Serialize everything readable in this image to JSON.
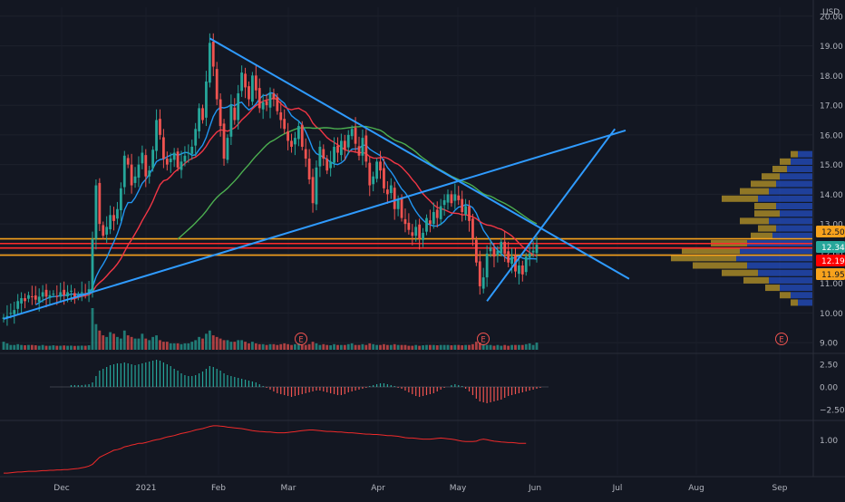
{
  "chart_data": {
    "type": "candlestick",
    "currency": "USD",
    "price_axis": {
      "ticks": [
        "20.00",
        "19.00",
        "18.00",
        "17.00",
        "16.00",
        "15.00",
        "14.00",
        "13.00",
        "12.00",
        "11.00",
        "10.00",
        "9.00"
      ],
      "ylim": [
        8.7,
        20.3
      ]
    },
    "time_axis": {
      "labels": [
        "Dec",
        "2021",
        "Feb",
        "Mar",
        "Apr",
        "May",
        "Jun",
        "Jul",
        "Aug",
        "Sep"
      ]
    },
    "price_badges": [
      {
        "value": "12.50",
        "color": "#f7a21c",
        "text_color": "#131722"
      },
      {
        "value": "12.34",
        "color": "#26a69a",
        "text_color": "#ffffff"
      },
      {
        "value": "12.19",
        "color": "#ff0000",
        "text_color": "#ffffff"
      },
      {
        "value": "11.95",
        "color": "#f7a21c",
        "text_color": "#131722"
      }
    ],
    "horizontal_levels": [
      {
        "price": 12.5,
        "color": "#f7a21c"
      },
      {
        "price": 12.34,
        "color": "#ff2b2b"
      },
      {
        "price": 12.19,
        "color": "#ff2b2b"
      },
      {
        "price": 11.95,
        "color": "#f7a21c"
      }
    ],
    "close_series": [
      9.85,
      9.9,
      10.0,
      10.1,
      10.4,
      10.5,
      10.4,
      10.6,
      10.55,
      10.45,
      10.55,
      10.7,
      10.55,
      10.6,
      10.65,
      10.55,
      10.7,
      10.6,
      10.7,
      10.75,
      10.55,
      10.6,
      10.7,
      10.65,
      10.8,
      12.5,
      14.3,
      13.0,
      12.6,
      12.9,
      13.3,
      13.1,
      13.5,
      14.2,
      15.3,
      15.0,
      14.3,
      14.6,
      15.0,
      15.4,
      14.6,
      14.8,
      15.5,
      16.5,
      16.0,
      15.2,
      15.0,
      15.2,
      15.4,
      14.9,
      15.1,
      15.3,
      15.4,
      15.6,
      16.2,
      16.9,
      16.5,
      17.8,
      19.1,
      18.3,
      17.2,
      16.3,
      15.2,
      15.9,
      17.0,
      16.5,
      17.4,
      18.1,
      17.6,
      17.2,
      18.0,
      17.5,
      16.9,
      17.1,
      17.0,
      17.4,
      17.2,
      16.8,
      16.5,
      16.2,
      15.8,
      15.6,
      15.9,
      16.3,
      15.6,
      15.2,
      14.5,
      13.7,
      14.9,
      15.6,
      15.2,
      14.8,
      15.1,
      15.6,
      15.4,
      15.8,
      15.5,
      16.0,
      16.2,
      15.7,
      15.3,
      15.9,
      15.1,
      14.3,
      14.6,
      15.1,
      14.8,
      14.2,
      14.0,
      14.3,
      13.5,
      13.8,
      13.2,
      13.0,
      12.8,
      12.6,
      12.9,
      12.5,
      12.7,
      13.2,
      13.0,
      13.4,
      13.2,
      13.6,
      13.8,
      14.0,
      13.7,
      14.0,
      13.8,
      13.4,
      13.6,
      13.1,
      12.5,
      11.7,
      10.9,
      11.2,
      12.0,
      12.2,
      11.9,
      12.1,
      12.4,
      12.0,
      11.7,
      11.9,
      11.4,
      11.6,
      11.3,
      11.9,
      12.0,
      12.1,
      12.3
    ],
    "volume_series": [
      0.5,
      0.4,
      0.3,
      0.3,
      0.35,
      0.3,
      0.28,
      0.3,
      0.3,
      0.28,
      0.25,
      0.3,
      0.25,
      0.25,
      0.28,
      0.25,
      0.25,
      0.27,
      0.25,
      0.26,
      0.24,
      0.25,
      0.26,
      0.25,
      0.28,
      2.6,
      1.6,
      1.2,
      0.9,
      0.8,
      1.1,
      1.0,
      0.8,
      0.7,
      1.2,
      0.9,
      0.8,
      0.7,
      0.7,
      1.0,
      0.7,
      0.6,
      0.8,
      0.9,
      0.6,
      0.5,
      0.5,
      0.4,
      0.4,
      0.4,
      0.35,
      0.4,
      0.4,
      0.5,
      0.6,
      0.8,
      0.7,
      1.0,
      1.2,
      0.9,
      0.8,
      0.7,
      0.6,
      0.6,
      0.5,
      0.5,
      0.6,
      0.6,
      0.5,
      0.4,
      0.5,
      0.4,
      0.35,
      0.35,
      0.3,
      0.35,
      0.35,
      0.3,
      0.35,
      0.4,
      0.35,
      0.3,
      0.35,
      0.4,
      0.3,
      0.3,
      0.35,
      0.5,
      0.4,
      0.3,
      0.35,
      0.3,
      0.28,
      0.35,
      0.3,
      0.3,
      0.3,
      0.35,
      0.4,
      0.3,
      0.3,
      0.35,
      0.3,
      0.4,
      0.35,
      0.3,
      0.3,
      0.35,
      0.3,
      0.3,
      0.35,
      0.3,
      0.3,
      0.3,
      0.25,
      0.25,
      0.3,
      0.25,
      0.28,
      0.3,
      0.3,
      0.3,
      0.28,
      0.3,
      0.3,
      0.3,
      0.28,
      0.3,
      0.3,
      0.28,
      0.3,
      0.3,
      0.35,
      0.5,
      0.45,
      0.35,
      0.3,
      0.3,
      0.25,
      0.3,
      0.25,
      0.3,
      0.25,
      0.3,
      0.3,
      0.3,
      0.3,
      0.35,
      0.4,
      0.3,
      0.45
    ],
    "earnings_markers": [
      "E",
      "E",
      "E"
    ],
    "moving_averages": [
      {
        "period": 10,
        "color": "#2196f3"
      },
      {
        "period": 20,
        "color": "#f23645"
      },
      {
        "period": 50,
        "color": "#4caf50"
      }
    ],
    "trendlines": [
      {
        "from": [
          0,
          9.8
        ],
        "to": [
          175,
          16.15
        ],
        "color": "#2f9bff"
      },
      {
        "from": [
          58,
          19.25
        ],
        "to": [
          176,
          11.15
        ],
        "color": "#2f9bff"
      },
      {
        "from": [
          136,
          10.4
        ],
        "to": [
          172,
          16.2
        ],
        "color": "#2f9bff"
      }
    ],
    "volume_profile": [
      {
        "price": 15.35,
        "up": 0.1,
        "down": 0.2
      },
      {
        "price": 15.1,
        "up": 0.15,
        "down": 0.3
      },
      {
        "price": 14.85,
        "up": 0.2,
        "down": 0.35
      },
      {
        "price": 14.6,
        "up": 0.25,
        "down": 0.45
      },
      {
        "price": 14.35,
        "up": 0.35,
        "down": 0.5
      },
      {
        "price": 14.1,
        "up": 0.4,
        "down": 0.6
      },
      {
        "price": 13.85,
        "up": 0.5,
        "down": 0.75
      },
      {
        "price": 13.6,
        "up": 0.3,
        "down": 0.5
      },
      {
        "price": 13.35,
        "up": 0.35,
        "down": 0.45
      },
      {
        "price": 13.1,
        "up": 0.4,
        "down": 0.6
      },
      {
        "price": 12.85,
        "up": 0.25,
        "down": 0.5
      },
      {
        "price": 12.6,
        "up": 0.3,
        "down": 0.55
      },
      {
        "price": 12.35,
        "up": 0.5,
        "down": 0.9
      },
      {
        "price": 12.1,
        "up": 0.8,
        "down": 1.0
      },
      {
        "price": 11.85,
        "up": 0.9,
        "down": 1.05
      },
      {
        "price": 11.6,
        "up": 0.75,
        "down": 0.9
      },
      {
        "price": 11.35,
        "up": 0.5,
        "down": 0.75
      },
      {
        "price": 11.1,
        "up": 0.35,
        "down": 0.6
      },
      {
        "price": 10.85,
        "up": 0.2,
        "down": 0.45
      },
      {
        "price": 10.6,
        "up": 0.15,
        "down": 0.3
      },
      {
        "price": 10.35,
        "up": 0.1,
        "down": 0.2
      }
    ],
    "oscillator": {
      "ticks": [
        "2.50",
        "0.00",
        "−2.50"
      ],
      "ylim": [
        -3.5,
        3.5
      ],
      "values": [
        0,
        0,
        0,
        0,
        0,
        0,
        0,
        0,
        0,
        0,
        0,
        0,
        0,
        0,
        0,
        0,
        0,
        0,
        0,
        0.2,
        0.2,
        0.2,
        0.2,
        0.25,
        0.3,
        0.5,
        1.2,
        1.8,
        2.0,
        2.2,
        2.4,
        2.5,
        2.6,
        2.6,
        2.7,
        2.6,
        2.5,
        2.4,
        2.5,
        2.6,
        2.7,
        2.8,
        2.9,
        3.0,
        2.9,
        2.7,
        2.5,
        2.3,
        2.0,
        1.8,
        1.5,
        1.3,
        1.2,
        1.2,
        1.3,
        1.5,
        1.7,
        2.0,
        2.3,
        2.2,
        2.0,
        1.8,
        1.5,
        1.3,
        1.2,
        1.1,
        1.0,
        0.9,
        0.8,
        0.7,
        0.6,
        0.5,
        0.3,
        0.1,
        -0.1,
        -0.3,
        -0.5,
        -0.7,
        -0.8,
        -0.9,
        -1.0,
        -1.1,
        -1.0,
        -0.9,
        -0.8,
        -0.7,
        -0.6,
        -0.5,
        -0.4,
        -0.4,
        -0.5,
        -0.6,
        -0.7,
        -0.8,
        -0.9,
        -0.9,
        -0.8,
        -0.6,
        -0.5,
        -0.4,
        -0.3,
        -0.2,
        -0.1,
        0.1,
        0.2,
        0.3,
        0.4,
        0.4,
        0.3,
        0.2,
        0.1,
        -0.1,
        -0.2,
        -0.4,
        -0.6,
        -0.8,
        -1.0,
        -1.1,
        -1.0,
        -0.9,
        -0.8,
        -0.7,
        -0.5,
        -0.3,
        -0.1,
        0.0,
        0.2,
        0.3,
        0.2,
        0.1,
        -0.2,
        -0.5,
        -0.9,
        -1.3,
        -1.6,
        -1.7,
        -1.8,
        -1.7,
        -1.6,
        -1.5,
        -1.4,
        -1.2,
        -1.0,
        -0.9,
        -0.8,
        -0.7,
        -0.6,
        -0.5,
        -0.4,
        -0.3,
        -0.2,
        -0.1
      ]
    },
    "ratio_indicator": {
      "ticks": [
        "1.00"
      ],
      "ylim": [
        0,
        1.5
      ],
      "values": [
        0.05,
        0.05,
        0.06,
        0.07,
        0.08,
        0.08,
        0.09,
        0.1,
        0.1,
        0.1,
        0.11,
        0.12,
        0.12,
        0.13,
        0.13,
        0.14,
        0.14,
        0.15,
        0.15,
        0.16,
        0.17,
        0.18,
        0.2,
        0.22,
        0.25,
        0.3,
        0.4,
        0.5,
        0.55,
        0.6,
        0.65,
        0.7,
        0.72,
        0.75,
        0.8,
        0.82,
        0.85,
        0.87,
        0.9,
        0.9,
        0.92,
        0.95,
        0.98,
        1.0,
        1.02,
        1.05,
        1.08,
        1.1,
        1.12,
        1.15,
        1.18,
        1.2,
        1.22,
        1.25,
        1.28,
        1.3,
        1.32,
        1.35,
        1.38,
        1.4,
        1.4,
        1.39,
        1.38,
        1.36,
        1.35,
        1.34,
        1.33,
        1.32,
        1.3,
        1.28,
        1.26,
        1.25,
        1.24,
        1.23,
        1.22,
        1.22,
        1.21,
        1.2,
        1.2,
        1.2,
        1.21,
        1.22,
        1.23,
        1.25,
        1.26,
        1.27,
        1.28,
        1.28,
        1.27,
        1.26,
        1.25,
        1.24,
        1.24,
        1.23,
        1.22,
        1.22,
        1.21,
        1.2,
        1.2,
        1.19,
        1.18,
        1.17,
        1.16,
        1.16,
        1.15,
        1.15,
        1.14,
        1.13,
        1.12,
        1.12,
        1.11,
        1.1,
        1.08,
        1.06,
        1.05,
        1.05,
        1.04,
        1.03,
        1.02,
        1.02,
        1.02,
        1.03,
        1.04,
        1.05,
        1.04,
        1.03,
        1.02,
        1.0,
        0.98,
        0.96,
        0.95,
        0.95,
        0.95,
        0.96,
        1.0,
        1.02,
        1.0,
        0.98,
        0.96,
        0.95,
        0.94,
        0.93,
        0.92,
        0.92,
        0.91,
        0.9,
        0.9,
        0.9
      ]
    }
  }
}
